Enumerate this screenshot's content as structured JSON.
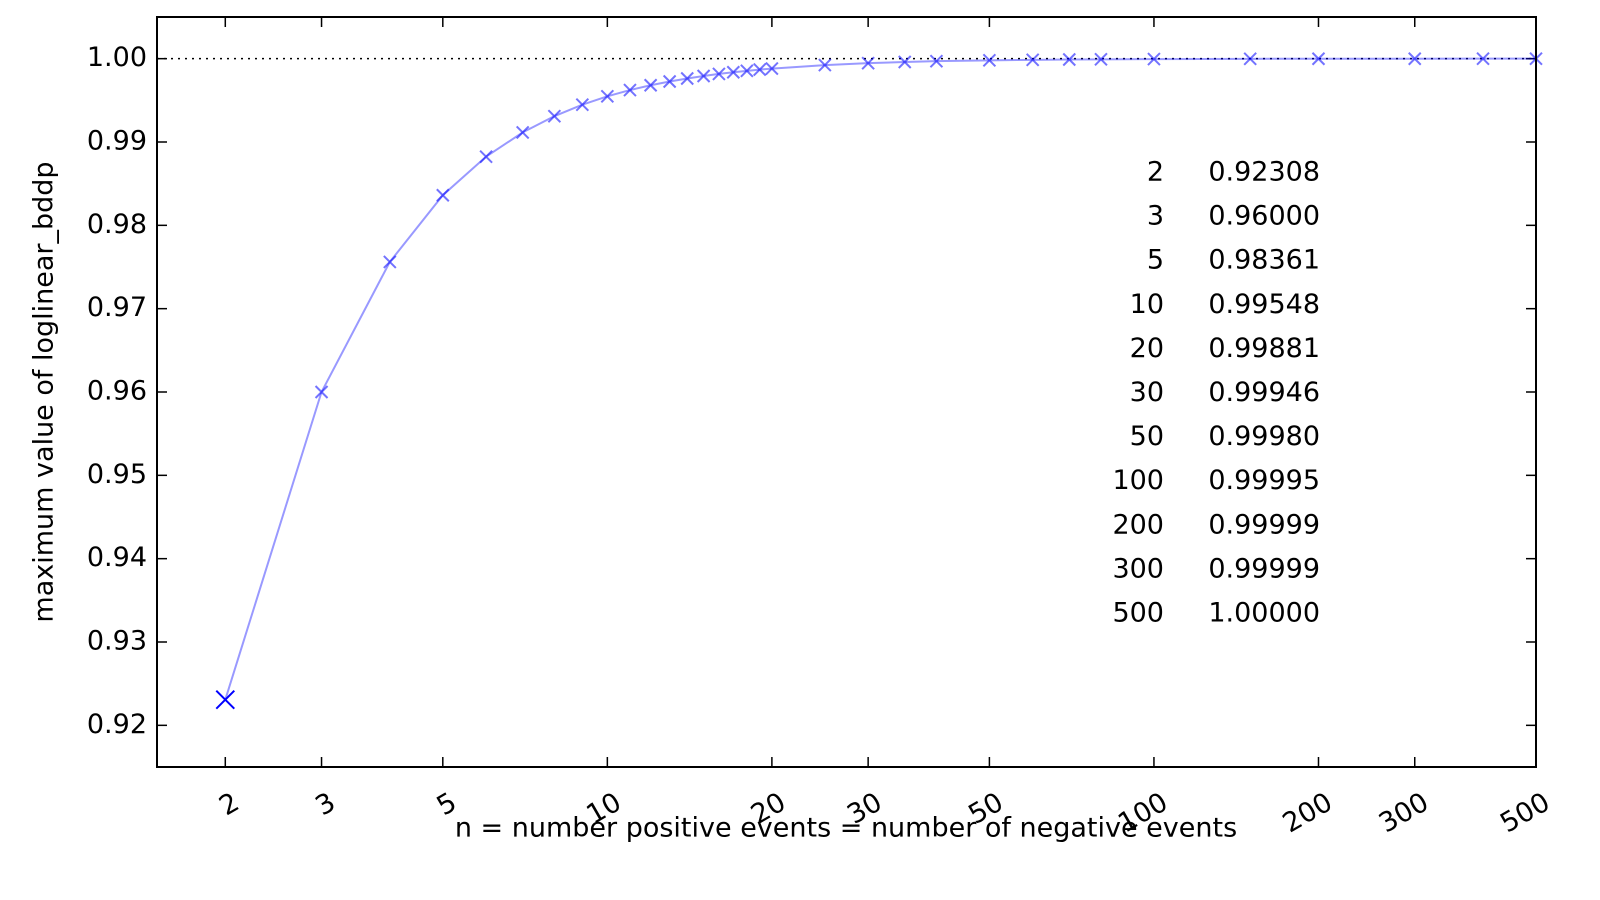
{
  "chart_data": {
    "type": "line",
    "x_label": "n = number positive events = number of negative events",
    "y_label": "maximum value of loglinear_bddp",
    "x": [
      2,
      3,
      4,
      5,
      6,
      7,
      8,
      9,
      10,
      11,
      12,
      13,
      14,
      15,
      16,
      17,
      18,
      19,
      20,
      25,
      30,
      35,
      40,
      50,
      60,
      70,
      80,
      100,
      150,
      200,
      300,
      400,
      500
    ],
    "series": [
      {
        "color": "#0000ff",
        "values": [
          0.92308,
          0.96,
          0.97561,
          0.98361,
          0.98824,
          0.99115,
          0.9931,
          0.99448,
          0.99548,
          0.99623,
          0.99681,
          0.99726,
          0.99762,
          0.99792,
          0.99817,
          0.99837,
          0.99854,
          0.99869,
          0.99881,
          0.99923,
          0.99946,
          0.9996,
          0.9997,
          0.9998,
          0.99986,
          0.9999,
          0.99992,
          0.99995,
          0.99998,
          0.99999,
          0.99999,
          1.0,
          1.0
        ]
      }
    ],
    "xscale": "log",
    "xlim": [
      1.5,
      500
    ],
    "xticks": [
      2,
      3,
      5,
      10,
      20,
      30,
      50,
      100,
      200,
      300,
      500
    ],
    "ylim": [
      0.915,
      1.005
    ],
    "yticks": [
      0.92,
      0.93,
      0.94,
      0.95,
      0.96,
      0.97,
      0.98,
      0.99,
      {
        "value": 1,
        "label": "1.00"
      }
    ],
    "reference_line": 1,
    "annotations": [
      [
        "2",
        "0.92308"
      ],
      [
        "3",
        "0.96000"
      ],
      [
        "5",
        "0.98361"
      ],
      [
        "10",
        "0.99548"
      ],
      [
        "20",
        "0.99881"
      ],
      [
        "30",
        "0.99946"
      ],
      [
        "50",
        "0.99980"
      ],
      [
        "100",
        "0.99995"
      ],
      [
        "200",
        "0.99999"
      ],
      [
        "300",
        "0.99999"
      ],
      [
        "500",
        "1.00000"
      ]
    ]
  }
}
